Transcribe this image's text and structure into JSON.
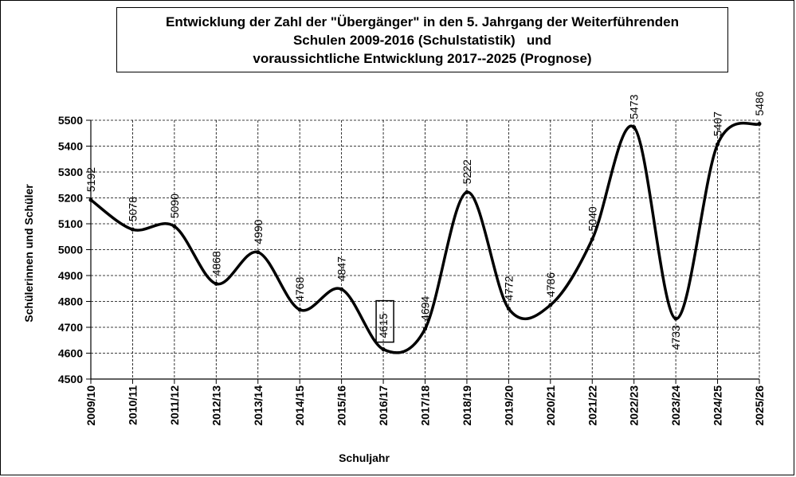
{
  "chart_data": {
    "type": "line",
    "title_lines": [
      "Entwicklung der Zahl der \"Übergänger\" in den 5. Jahrgang der Weiterführenden",
      "Schulen 2009-2016 (Schulstatistik)   und",
      "voraussichtliche Entwicklung 2017--2025 (Prognose)"
    ],
    "xlabel": "Schuljahr",
    "ylabel": "Schülerinnen und Schüler",
    "ylim": [
      4500,
      5500
    ],
    "yticks": [
      "4500",
      "4600",
      "4700",
      "4800",
      "4900",
      "5000",
      "5100",
      "5200",
      "5300",
      "5400",
      "5500"
    ],
    "grid": "dashed vertical and horizontal",
    "categories": [
      "2009/10",
      "2010/11",
      "2011/12",
      "2012/13",
      "2013/14",
      "2014/15",
      "2015/16",
      "2016/17",
      "2017/18",
      "2018/19",
      "2019/20",
      "2020/21",
      "2021/22",
      "2022/23",
      "2023/24",
      "2024/25",
      "2025/26"
    ],
    "values": [
      5192,
      5078,
      5090,
      4868,
      4990,
      4768,
      4847,
      4615,
      4694,
      5222,
      4772,
      4786,
      5040,
      5473,
      4733,
      5407,
      5486
    ],
    "value_labels": [
      "5192",
      "5078",
      "5090",
      "4868",
      "4990",
      "4768",
      "4847",
      "4615",
      "4694",
      "5222",
      "4772",
      "4786",
      "5040",
      "5473",
      "4733",
      "5407",
      "5486"
    ],
    "boxed_label_index": 7,
    "colors": {
      "line": "#000000",
      "grid": "#000000",
      "background": "#ffffff"
    }
  }
}
